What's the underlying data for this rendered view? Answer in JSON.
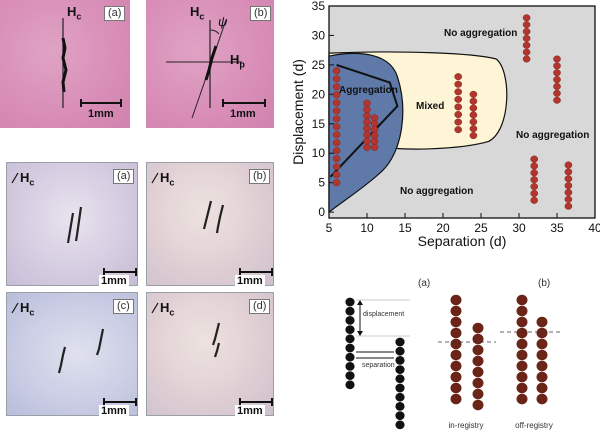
{
  "top_photos": [
    {
      "label": "(a)",
      "field_main": "H",
      "field_main_sub": "c",
      "scale": "1mm"
    },
    {
      "label": "(b)",
      "field_main": "H",
      "field_main_sub": "c",
      "field_perp": "H",
      "field_perp_sub": "p",
      "angle": "ψ",
      "scale": "1mm"
    }
  ],
  "micro_photos": [
    {
      "label": "(a)",
      "field": "H",
      "field_sub": "c",
      "scale": "1mm"
    },
    {
      "label": "(b)",
      "field": "H",
      "field_sub": "c",
      "scale": "1mm"
    },
    {
      "label": "(c)",
      "field": "H",
      "field_sub": "c",
      "scale": "1mm"
    },
    {
      "label": "(d)",
      "field": "H",
      "field_sub": "c",
      "scale": "1mm"
    }
  ],
  "chart_data": {
    "type": "scatter",
    "xlabel": "Separation (d)",
    "ylabel": "Displacement (d)",
    "xlim": [
      5,
      40
    ],
    "ylim": [
      -1,
      35
    ],
    "xticks": [
      5,
      10,
      15,
      20,
      25,
      30,
      35,
      40
    ],
    "yticks": [
      0,
      5,
      10,
      15,
      20,
      25,
      30,
      35
    ],
    "regions": [
      "No aggregation",
      "Aggregation",
      "Mixed",
      "No aggregation",
      "No aggregation"
    ],
    "chains": [
      {
        "x": 6,
        "y_from": 24,
        "y_to": 5,
        "beads": 15
      },
      {
        "x": 10,
        "y_from": 18.5,
        "y_to": 11,
        "beads": 8
      },
      {
        "x": 11,
        "y_from": 16,
        "y_to": 11,
        "beads": 6
      },
      {
        "x": 22,
        "y_from": 23,
        "y_to": 14,
        "beads": 8
      },
      {
        "x": 24,
        "y_from": 20,
        "y_to": 13,
        "beads": 7
      },
      {
        "x": 31,
        "y_from": 33,
        "y_to": 26,
        "beads": 7
      },
      {
        "x": 32,
        "y_from": 9,
        "y_to": 2,
        "beads": 7
      },
      {
        "x": 35,
        "y_from": 26,
        "y_to": 19,
        "beads": 7
      },
      {
        "x": 36.5,
        "y_from": 8,
        "y_to": 1,
        "beads": 7
      }
    ],
    "colors": {
      "grey": "#d8d8d8",
      "aggregation": "#5f7aa8",
      "mixed": "#fdf5d5",
      "bead": "#b2352e"
    }
  },
  "schematic": {
    "panel_a": "(a)",
    "panel_b": "(b)",
    "displacement_label": "displacement",
    "separation_label": "separation",
    "in_registry": "in-registry",
    "off_registry": "off-registry"
  }
}
